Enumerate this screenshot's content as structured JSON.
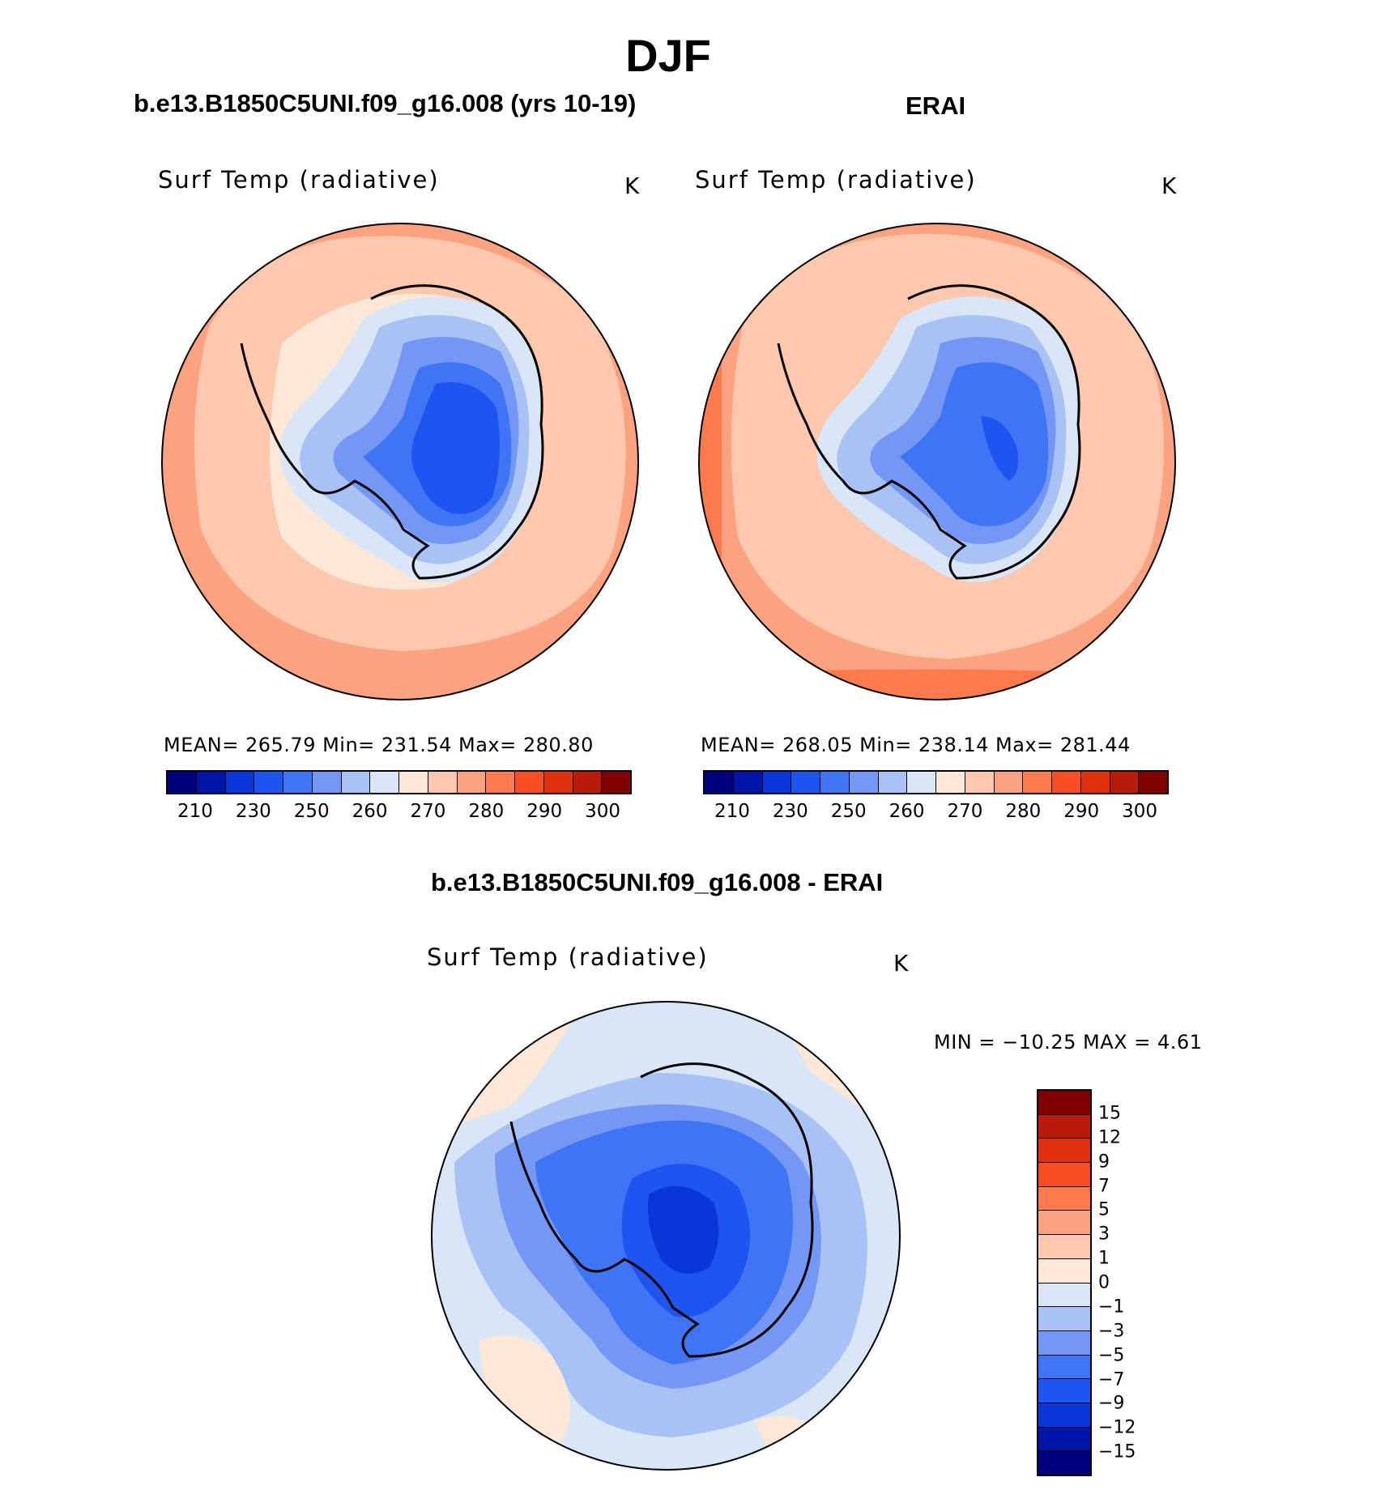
{
  "figure": {
    "title": "DJF",
    "panels": [
      {
        "title": "b.e13.B1850C5UNI.f09_g16.008 (yrs 10-19)",
        "variable": "Surf Temp (radiative)",
        "units": "K",
        "stats": "MEAN=  265.79    Min=  231.54    Max=  280.80",
        "colorbar": {
          "colors": [
            "#00007f",
            "#0015a8",
            "#0a35d8",
            "#1e54f0",
            "#3f74f5",
            "#7497f5",
            "#a8c2f5",
            "#d8e6f7",
            "#fde7d6",
            "#fdc8ad",
            "#fba381",
            "#fc7a4e",
            "#f94e24",
            "#e0300d",
            "#ba1a0a",
            "#800000"
          ],
          "labels": [
            "210",
            "230",
            "250",
            "260",
            "270",
            "280",
            "290",
            "300"
          ]
        }
      },
      {
        "title": "ERAI",
        "variable": "Surf Temp (radiative)",
        "units": "K",
        "stats": "MEAN=  268.05    Min=  238.14    Max=  281.44",
        "colorbar": {
          "colors": [
            "#00007f",
            "#0015a8",
            "#0a35d8",
            "#1e54f0",
            "#3f74f5",
            "#7497f5",
            "#a8c2f5",
            "#d8e6f7",
            "#fde7d6",
            "#fdc8ad",
            "#fba381",
            "#fc7a4e",
            "#f94e24",
            "#e0300d",
            "#ba1a0a",
            "#800000"
          ],
          "labels": [
            "210",
            "230",
            "250",
            "260",
            "270",
            "280",
            "290",
            "300"
          ]
        }
      },
      {
        "title": "b.e13.B1850C5UNI.f09_g16.008 - ERAI",
        "variable": "Surf Temp (radiative)",
        "units": "K",
        "stats": "MIN = −10.25 MAX =     4.61",
        "colorbar": {
          "colors": [
            "#00007f",
            "#0015a8",
            "#0a35d8",
            "#1e54f0",
            "#3f74f5",
            "#7497f5",
            "#a8c2f5",
            "#d8e6f7",
            "#fde7d6",
            "#fdc8ad",
            "#fba381",
            "#fc7a4e",
            "#f94e24",
            "#e0300d",
            "#ba1a0a",
            "#800000"
          ],
          "labels": [
            "15",
            "12",
            "9",
            "7",
            "5",
            "3",
            "1",
            "0",
            "−1",
            "−3",
            "−5",
            "−7",
            "−9",
            "−12",
            "−15"
          ]
        }
      }
    ]
  }
}
